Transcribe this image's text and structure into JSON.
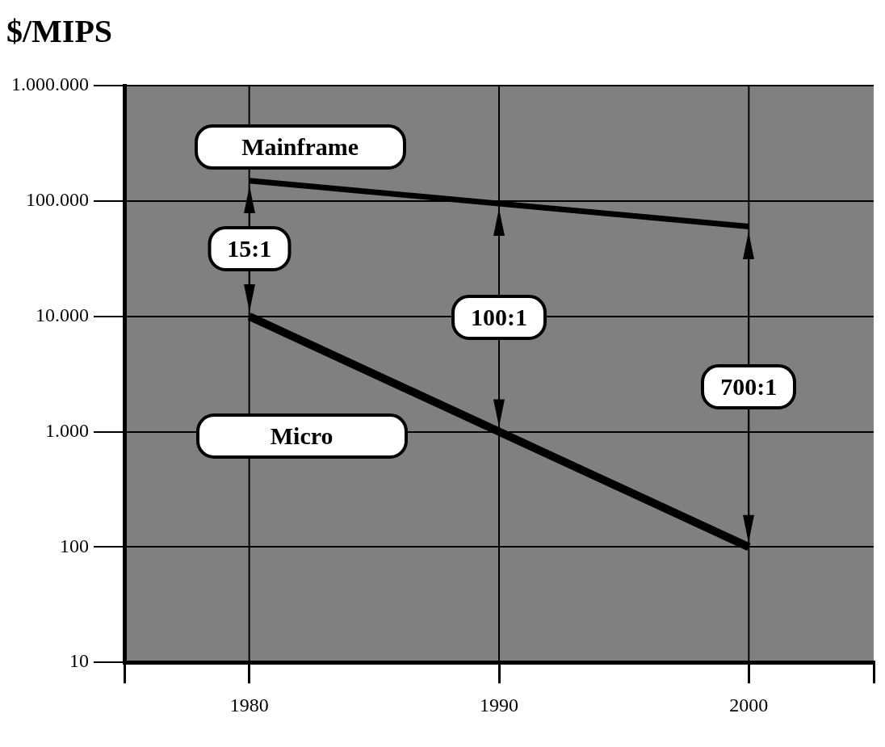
{
  "chart_data": {
    "type": "line",
    "title": "$/MIPS",
    "log": "y",
    "grid": true,
    "legend": false,
    "marker": "none",
    "x": [
      1980,
      2000
    ],
    "series": [
      {
        "name": "Mainframe",
        "color": "#000000",
        "values": [
          150000,
          60000
        ]
      },
      {
        "name": "Micro",
        "color": "#000000",
        "values": [
          10000,
          100
        ]
      }
    ],
    "xlim": [
      1975,
      2005
    ],
    "xticks": [
      {
        "value": 1975,
        "label": null
      },
      1980,
      1990,
      2000,
      {
        "value": 2005,
        "label": null
      }
    ],
    "ylim": [
      10,
      1000000
    ],
    "yticks": [
      10,
      100,
      {
        "value": 1000,
        "label": "1.000"
      },
      {
        "value": 10000,
        "label": "10.000"
      },
      {
        "value": 100000,
        "label": "100.000"
      },
      {
        "value": 1000000,
        "label": "1.000.000"
      }
    ],
    "annotations": [
      "15:1",
      "100:1",
      "700:1"
    ]
  }
}
